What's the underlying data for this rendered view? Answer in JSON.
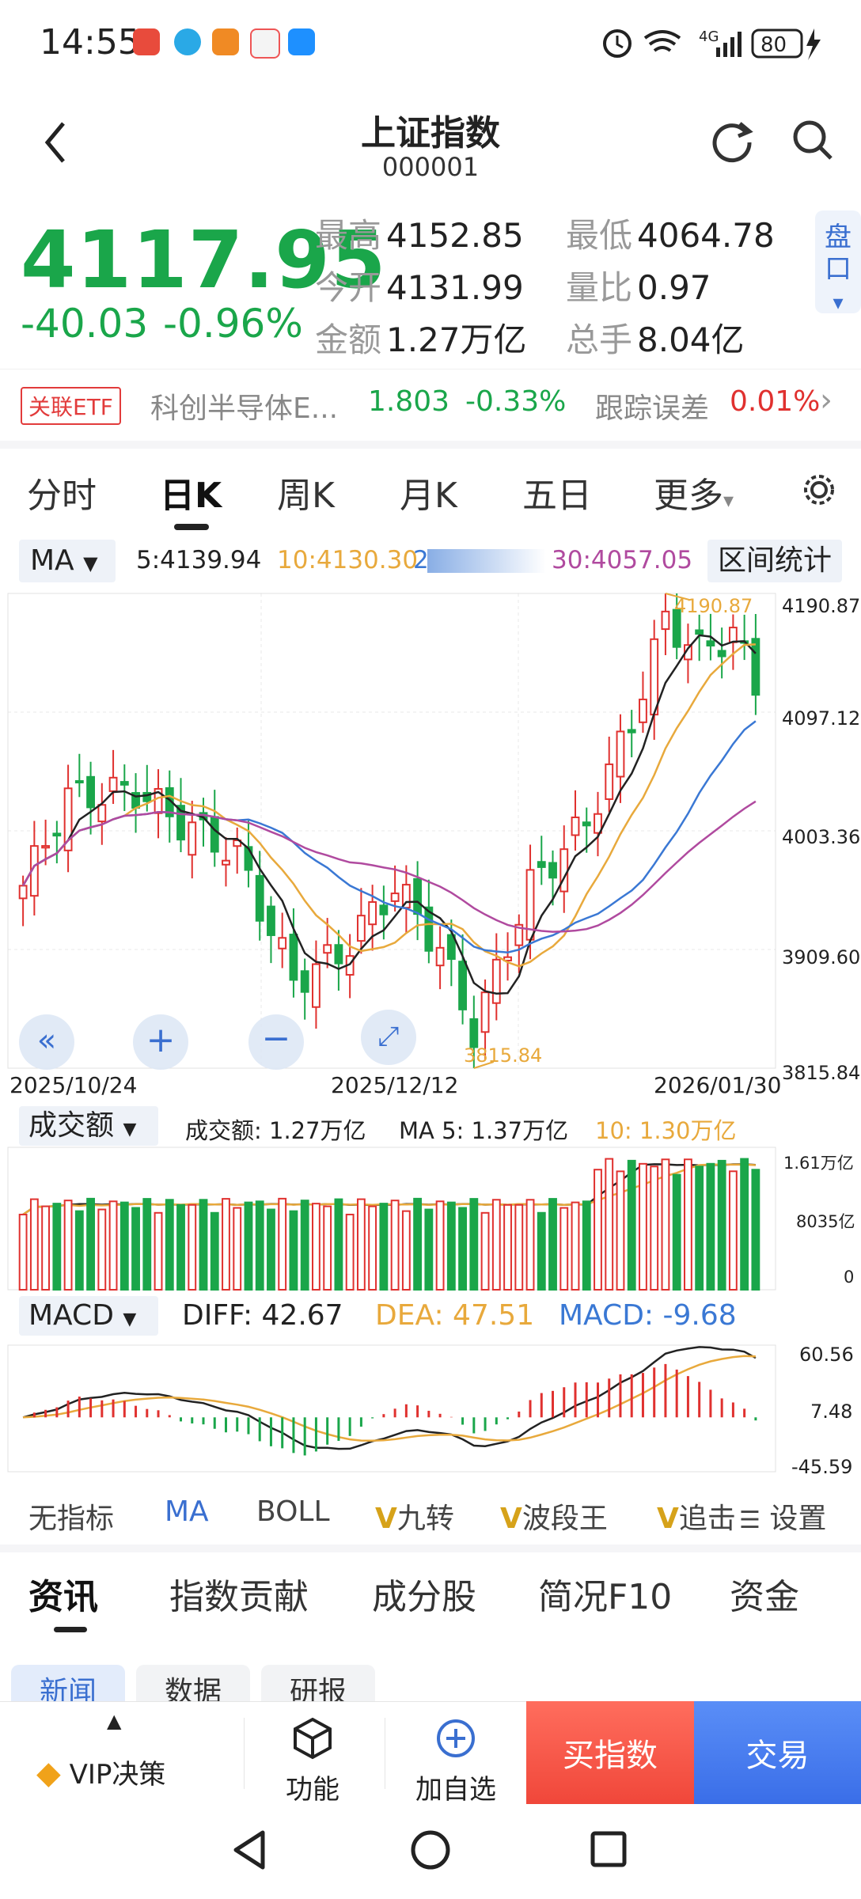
{
  "status_bar": {
    "time": "14:55",
    "signal_label": "4G",
    "battery": "80"
  },
  "header": {
    "title": "上证指数",
    "code": "000001"
  },
  "quote": {
    "price": "4117.95",
    "change": "-40.03",
    "change_pct": "-0.96%",
    "stats": [
      {
        "k": "最高",
        "v": "4152.85"
      },
      {
        "k": "最低",
        "v": "4064.78"
      },
      {
        "k": "今开",
        "v": "4131.99"
      },
      {
        "k": "量比",
        "v": "0.97"
      },
      {
        "k": "金额",
        "v": "1.27万亿"
      },
      {
        "k": "总手",
        "v": "8.04亿"
      }
    ],
    "pankou": "盘口"
  },
  "etf": {
    "tag": "关联ETF",
    "name": "科创半导体E...",
    "price": "1.803",
    "pct": "-0.33%",
    "track_label": "跟踪误差",
    "track_value": "0.01%"
  },
  "kline_tabs": [
    "分时",
    "日K",
    "周K",
    "月K",
    "五日",
    "更多"
  ],
  "ma_legend": {
    "type": "MA",
    "ma5": "5:4139.94",
    "ma10": "10:4130.30",
    "ma20": "2",
    "ma30": "30:4057.05",
    "stats_button": "区间统计"
  },
  "chart_data": {
    "type": "candlestick",
    "y_axis_labels": [
      "4190.87",
      "4097.12",
      "4003.36",
      "3909.60",
      "3815.84"
    ],
    "x_labels": [
      "2025/10/24",
      "2025/12/12",
      "2026/01/30"
    ],
    "annotations": [
      "4190.87",
      "3815.84"
    ],
    "ylim": [
      3815.84,
      4190.87
    ]
  },
  "volume": {
    "title": "成交额",
    "label": "成交额: 1.27万亿",
    "ma5": "MA 5: 1.37万亿",
    "ma10": "10: 1.30万亿",
    "axis": [
      "1.61万亿",
      "8035亿",
      "0"
    ]
  },
  "macd": {
    "title": "MACD",
    "diff": "DIFF: 42.67",
    "dea": "DEA: 47.51",
    "macd": "MACD: -9.68",
    "axis": [
      "60.56",
      "7.48",
      "-45.59"
    ]
  },
  "indicators": [
    "无指标",
    "MA",
    "BOLL",
    "九转",
    "波段王",
    "追击",
    "设置"
  ],
  "news_tabs": [
    "资讯",
    "指数贡献",
    "成分股",
    "简况F10",
    "资金"
  ],
  "sub_tabs": [
    "新闻",
    "数据",
    "研报"
  ],
  "bottom_bar": {
    "vip": "VIP决策",
    "func": "功能",
    "add": "加自选",
    "buy": "买指数",
    "trade": "交易"
  },
  "colors": {
    "up": "#e0312f",
    "down": "#1aa64a",
    "ma5": "#222222",
    "ma10": "#e8a93c",
    "ma20": "#3a78d4",
    "ma30": "#b04a9f"
  }
}
